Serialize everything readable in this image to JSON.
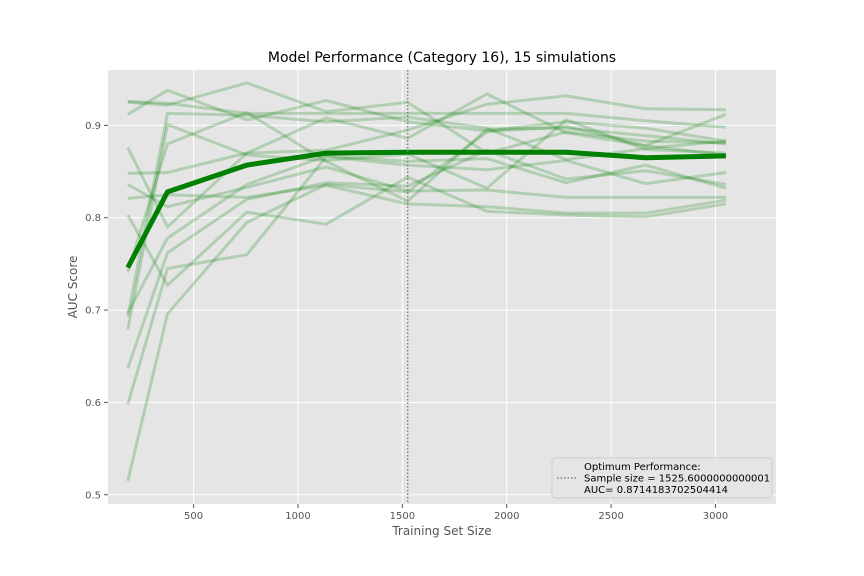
{
  "chart_data": {
    "type": "line",
    "title": "Model Performance (Category 16), 15 simulations",
    "xlabel": "Training Set Size",
    "ylabel": "AUC Score",
    "xlim": [
      90,
      3290
    ],
    "ylim": [
      0.49,
      0.96
    ],
    "xticks": [
      500,
      1000,
      1500,
      2000,
      2500,
      3000
    ],
    "yticks": [
      0.5,
      0.6,
      0.7,
      0.8,
      0.9
    ],
    "x": [
      185,
      375,
      755,
      1135,
      1525,
      1905,
      2285,
      2665,
      3050
    ],
    "simulations": [
      [
        0.926,
        0.924,
        0.913,
        0.913,
        0.913,
        0.913,
        0.913,
        0.905,
        0.898
      ],
      [
        0.912,
        0.938,
        0.906,
        0.927,
        0.904,
        0.894,
        0.904,
        0.897,
        0.883
      ],
      [
        0.925,
        0.922,
        0.946,
        0.915,
        0.925,
        0.87,
        0.893,
        0.883,
        0.881
      ],
      [
        0.876,
        0.79,
        0.87,
        0.873,
        0.895,
        0.923,
        0.932,
        0.918,
        0.917
      ],
      [
        0.848,
        0.849,
        0.87,
        0.908,
        0.886,
        0.934,
        0.892,
        0.878,
        0.912
      ],
      [
        0.836,
        0.812,
        0.833,
        0.855,
        0.829,
        0.83,
        0.822,
        0.822,
        0.822
      ],
      [
        0.821,
        0.825,
        0.822,
        0.835,
        0.815,
        0.812,
        0.805,
        0.805,
        0.819
      ],
      [
        0.803,
        0.727,
        0.806,
        0.793,
        0.844,
        0.807,
        0.803,
        0.801,
        0.815
      ],
      [
        0.741,
        0.88,
        0.914,
        0.861,
        0.818,
        0.896,
        0.897,
        0.889,
        0.88
      ],
      [
        0.693,
        0.913,
        0.911,
        0.904,
        0.909,
        0.897,
        0.863,
        0.875,
        0.883
      ],
      [
        0.697,
        0.778,
        0.836,
        0.867,
        0.861,
        0.864,
        0.838,
        0.857,
        0.832
      ],
      [
        0.679,
        0.901,
        0.868,
        0.862,
        0.869,
        0.832,
        0.906,
        0.874,
        0.87
      ],
      [
        0.637,
        0.762,
        0.82,
        0.838,
        0.834,
        0.873,
        0.842,
        0.851,
        0.836
      ],
      [
        0.598,
        0.745,
        0.76,
        0.866,
        0.857,
        0.852,
        0.862,
        0.837,
        0.849
      ],
      [
        0.515,
        0.696,
        0.795,
        0.836,
        0.828,
        0.893,
        0.899,
        0.878,
        0.868
      ]
    ],
    "mean": [
      0.746,
      0.828,
      0.857,
      0.87,
      0.871,
      0.871,
      0.871,
      0.865,
      0.867
    ],
    "optimum_x": 1525.6,
    "legend": {
      "position": "lower-right",
      "lines": [
        "Optimum Performance:",
        "Sample size = 1525.6000000000001",
        "AUC= 0.8714183702504414"
      ]
    },
    "grid": true,
    "colors": {
      "background": "#e5e5e5",
      "grid": "#ffffff",
      "simulation": "#008000",
      "mean": "#008000",
      "optimum": "#808080"
    }
  }
}
